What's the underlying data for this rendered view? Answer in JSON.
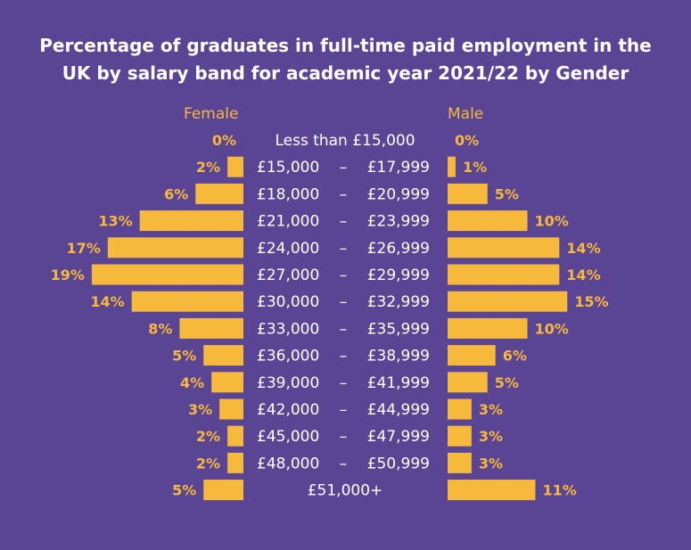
{
  "title": {
    "line1": "Percentage of graduates in full-time paid employment in the",
    "line2": "UK by salary band for academic year 2021/22 by Gender"
  },
  "colors": {
    "background": "#5a4494",
    "bar": "#f6b93b",
    "title_text": "#ffffff",
    "category_text": "#ffffff"
  },
  "chart_data": {
    "type": "bar",
    "orientation": "horizontal-butterfly",
    "categories": [
      {
        "low": "Less than £15,000",
        "sep": "",
        "high": ""
      },
      {
        "low": "£15,000",
        "sep": "–",
        "high": "£17,999"
      },
      {
        "low": "£18,000",
        "sep": "–",
        "high": "£20,999"
      },
      {
        "low": "£21,000",
        "sep": "–",
        "high": "£23,999"
      },
      {
        "low": "£24,000",
        "sep": "–",
        "high": "£26,999"
      },
      {
        "low": "£27,000",
        "sep": "–",
        "high": "£29,999"
      },
      {
        "low": "£30,000",
        "sep": "–",
        "high": "£32,999"
      },
      {
        "low": "£33,000",
        "sep": "–",
        "high": "£35,999"
      },
      {
        "low": "£36,000",
        "sep": "–",
        "high": "£38,999"
      },
      {
        "low": "£39,000",
        "sep": "–",
        "high": "£41,999"
      },
      {
        "low": "£42,000",
        "sep": "–",
        "high": "£44,999"
      },
      {
        "low": "£45,000",
        "sep": "–",
        "high": "£47,999"
      },
      {
        "low": "£48,000",
        "sep": "–",
        "high": "£50,999"
      },
      {
        "low": "£51,000+",
        "sep": "",
        "high": ""
      }
    ],
    "series": [
      {
        "name": "Female",
        "side": "left",
        "values": [
          0,
          2,
          6,
          13,
          17,
          19,
          14,
          8,
          5,
          4,
          3,
          2,
          2,
          5
        ],
        "labels": [
          "0%",
          "2%",
          "6%",
          "13%",
          "17%",
          "19%",
          "14%",
          "8%",
          "5%",
          "4%",
          "3%",
          "2%",
          "2%",
          "5%"
        ]
      },
      {
        "name": "Male",
        "side": "right",
        "values": [
          0,
          1,
          5,
          10,
          14,
          14,
          15,
          10,
          6,
          5,
          3,
          3,
          3,
          11
        ],
        "labels": [
          "0%",
          "1%",
          "5%",
          "10%",
          "14%",
          "14%",
          "15%",
          "10%",
          "6%",
          "5%",
          "3%",
          "3%",
          "3%",
          "11%"
        ]
      }
    ],
    "unit": "%",
    "grid": false
  }
}
